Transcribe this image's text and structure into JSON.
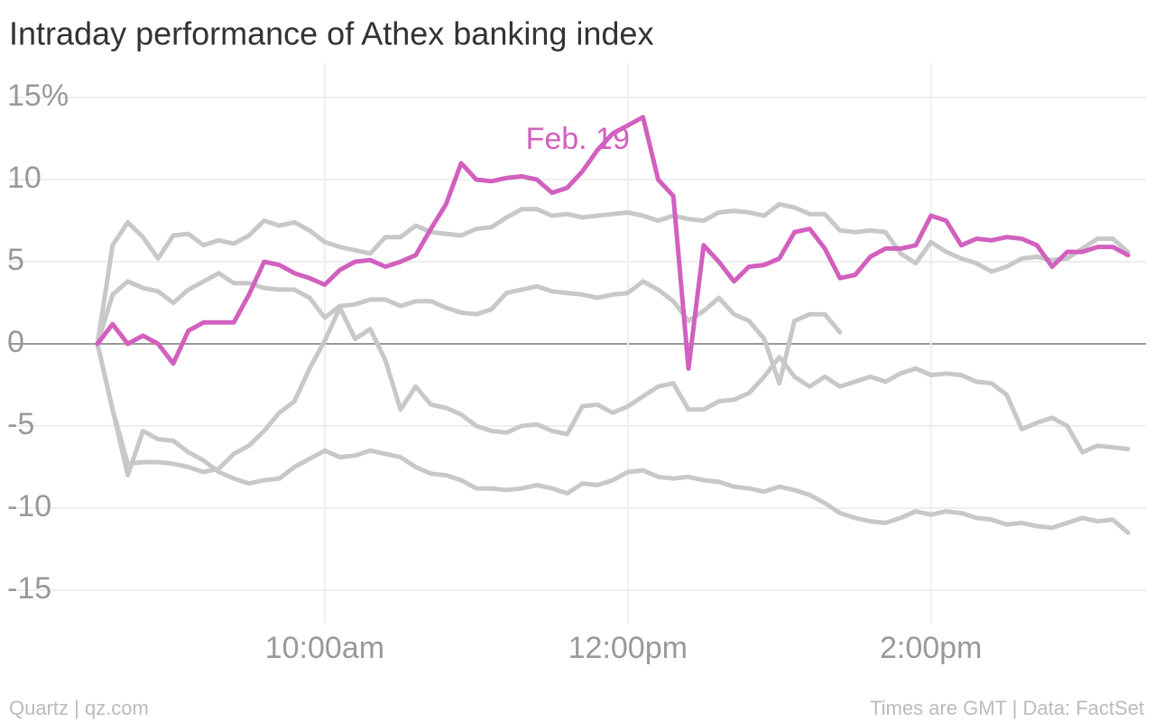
{
  "chart_data": {
    "type": "line",
    "title": "Intraday performance of Athex banking index",
    "source_left": "Quartz | qz.com",
    "source_right": "Times are GMT | Data: FactSet",
    "grid": true,
    "xlim": [
      8.5,
      15.3
    ],
    "xticks": [
      {
        "value": 10,
        "label": "10:00am"
      },
      {
        "value": 12,
        "label": "12:00pm"
      },
      {
        "value": 14,
        "label": "2:00pm"
      }
    ],
    "ylim": [
      -15,
      15
    ],
    "yticks": [
      {
        "value": 15,
        "label": "15%"
      },
      10,
      5,
      0,
      -5,
      -10,
      -15
    ],
    "x": [
      8.5,
      8.6,
      8.7,
      8.8,
      8.9,
      9.0,
      9.1,
      9.2,
      9.3,
      9.4,
      9.5,
      9.6,
      9.7,
      9.8,
      9.9,
      10.0,
      10.1,
      10.2,
      10.3,
      10.4,
      10.5,
      10.6,
      10.7,
      10.8,
      10.9,
      11.0,
      11.1,
      11.2,
      11.3,
      11.4,
      11.5,
      11.6,
      11.7,
      11.8,
      11.9,
      12.0,
      12.1,
      12.2,
      12.3,
      12.4,
      12.5,
      12.6,
      12.7,
      12.8,
      12.9,
      13.0,
      13.1,
      13.2,
      13.3,
      13.4,
      13.5,
      13.6,
      13.7,
      13.8,
      13.9,
      14.0,
      14.1,
      14.2,
      14.3,
      14.4,
      14.5,
      14.6,
      14.7,
      14.8,
      14.9,
      15.0,
      15.1,
      15.2,
      15.3
    ],
    "series": [
      {
        "color": "#c8c8c8",
        "values": [
          0,
          6,
          7.4,
          6.5,
          5.2,
          6.6,
          6.7,
          6,
          6.3,
          6.1,
          6.6,
          7.5,
          7.2,
          7.4,
          6.9,
          6.2,
          5.9,
          5.7,
          5.5,
          6.5,
          6.5,
          7.2,
          6.8,
          6.7,
          6.6,
          7,
          7.1,
          7.7,
          8.2,
          8.2,
          7.8,
          7.9,
          7.7,
          7.8,
          7.9,
          8,
          7.8,
          7.5,
          7.8,
          7.6,
          7.5,
          8,
          8.1,
          8,
          7.8,
          8.5,
          8.3,
          7.9,
          7.9,
          6.9,
          6.8,
          6.9,
          6.8,
          5.5,
          4.9,
          6.2,
          5.6,
          5.2,
          4.9,
          4.4,
          4.7,
          5.2,
          5.3,
          5.1,
          5.2,
          5.8,
          6.4,
          6.4,
          5.6
        ]
      },
      {
        "color": "#c8c8c8",
        "values": [
          0,
          3,
          3.8,
          3.4,
          3.2,
          2.5,
          3.3,
          3.8,
          4.3,
          3.7,
          3.7,
          3.4,
          3.3,
          3.3,
          2.8,
          1.6,
          2.3,
          2.4,
          2.7,
          2.7,
          2.3,
          2.6,
          2.6,
          2.2,
          1.9,
          1.8,
          2.1,
          3.1,
          3.3,
          3.5,
          3.2,
          3.1,
          3,
          2.8,
          3,
          3.1,
          3.8,
          3.3,
          2.6,
          1.4,
          2,
          2.8,
          1.8,
          1.4,
          0.3,
          -2.4,
          1.4,
          1.8,
          1.8,
          0.7,
          null,
          null,
          null,
          null,
          null,
          null,
          null,
          null,
          null,
          null,
          null,
          null,
          null,
          null,
          null,
          null,
          null,
          null,
          null
        ]
      },
      {
        "color": "#c8c8c8",
        "values": [
          0,
          -4,
          -7.3,
          -7.2,
          -7.2,
          -7.3,
          -7.5,
          -7.8,
          -7.6,
          -6.7,
          -6.2,
          -5.3,
          -4.2,
          -3.5,
          -1.5,
          0.2,
          2.2,
          0.3,
          0.9,
          -1,
          -4,
          -2.6,
          -3.7,
          -3.9,
          -4.3,
          -5,
          -5.3,
          -5.4,
          -5,
          -4.9,
          -5.3,
          -5.5,
          -3.8,
          -3.7,
          -4.2,
          -3.8,
          -3.2,
          -2.6,
          -2.4,
          -4,
          -4,
          -3.5,
          -3.4,
          -3,
          -2,
          -0.8,
          -2,
          -2.6,
          -2,
          -2.6,
          -2.3,
          -2,
          -2.3,
          -1.8,
          -1.5,
          -1.9,
          -1.8,
          -1.9,
          -2.3,
          -2.4,
          -3.1,
          -5.2,
          -4.8,
          -4.5,
          -5,
          -6.6,
          -6.2,
          -6.3,
          -6.4
        ]
      },
      {
        "color": "#c8c8c8",
        "values": [
          0,
          -4,
          -8,
          -5.3,
          -5.8,
          -5.9,
          -6.6,
          -7.1,
          -7.8,
          -8.2,
          -8.5,
          -8.3,
          -8.2,
          -7.5,
          -7,
          -6.5,
          -6.9,
          -6.8,
          -6.5,
          -6.7,
          -6.9,
          -7.5,
          -7.9,
          -8,
          -8.3,
          -8.8,
          -8.8,
          -8.9,
          -8.8,
          -8.6,
          -8.8,
          -9.1,
          -8.5,
          -8.6,
          -8.3,
          -7.8,
          -7.7,
          -8.1,
          -8.2,
          -8.1,
          -8.3,
          -8.4,
          -8.7,
          -8.8,
          -9,
          -8.7,
          -8.9,
          -9.2,
          -9.7,
          -10.3,
          -10.6,
          -10.8,
          -10.9,
          -10.6,
          -10.2,
          -10.4,
          -10.2,
          -10.3,
          -10.6,
          -10.7,
          -11,
          -10.9,
          -11.1,
          -11.2,
          -10.9,
          -10.6,
          -10.8,
          -10.7,
          -11.5
        ]
      },
      {
        "name": "Feb. 19",
        "color": "#d160be",
        "values": [
          0,
          1.2,
          0,
          0.5,
          0,
          -1.2,
          0.8,
          1.3,
          1.3,
          1.3,
          3,
          5,
          4.8,
          4.3,
          4,
          3.6,
          4.5,
          5,
          5.1,
          4.7,
          5,
          5.4,
          7,
          8.5,
          11,
          10,
          9.9,
          10.1,
          10.2,
          10,
          9.2,
          9.5,
          10.5,
          11.8,
          12.8,
          13.3,
          13.8,
          10,
          9,
          -1.5,
          6,
          5,
          3.8,
          4.7,
          4.8,
          5.2,
          6.8,
          7,
          5.8,
          4,
          4.2,
          5.3,
          5.8,
          5.8,
          6,
          7.8,
          7.5,
          6,
          6.4,
          6.3,
          6.5,
          6.4,
          6,
          4.7,
          5.6,
          5.6,
          5.9,
          5.9,
          5.4
        ]
      }
    ]
  }
}
